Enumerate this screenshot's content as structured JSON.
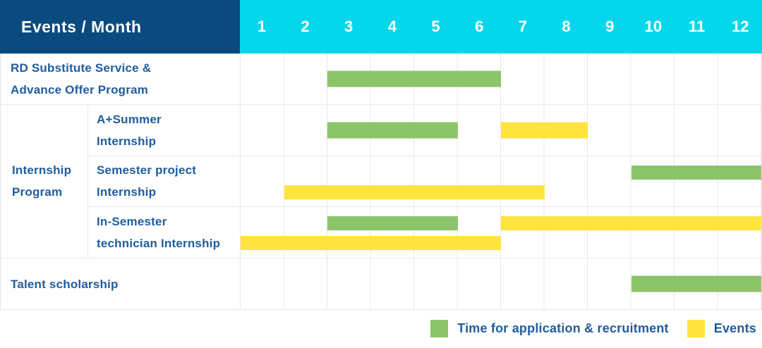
{
  "header": {
    "title": "Events / Month"
  },
  "colors": {
    "recruitment": "#8cc46a",
    "event": "#ffe440",
    "header_bg": "#0a4a7e",
    "month_header_bg": "#04d7ec",
    "label_text": "#1f5c9d",
    "header_text": "#ffffff",
    "grid_line": "#e8e8e8"
  },
  "chart_data": {
    "type": "bar",
    "variant": "gantt",
    "title": "Events / Month",
    "xlabel": "Month",
    "x_range": [
      1,
      12
    ],
    "month_ticks": [
      "1",
      "2",
      "3",
      "4",
      "5",
      "6",
      "7",
      "8",
      "9",
      "10",
      "11",
      "12"
    ],
    "grid": true,
    "legend_position": "bottom-right",
    "group": {
      "label": "Internship\nProgram",
      "name": "Internship Program",
      "member_rows": [
        1,
        2,
        3
      ]
    },
    "tasks": [
      {
        "label": "RD Substitute Service &\nAdvance Offer Program",
        "name": "RD Substitute Service & Advance Offer Program",
        "bars": [
          {
            "series": "recruitment",
            "start_month": 3,
            "end_month": 6,
            "slot": "center"
          }
        ]
      },
      {
        "label": "A+Summer\nInternship",
        "name": "A+Summer Internship",
        "group": "Internship Program",
        "bars": [
          {
            "series": "recruitment",
            "start_month": 3,
            "end_month": 5,
            "slot": "center"
          },
          {
            "series": "event",
            "start_month": 7,
            "end_month": 8,
            "slot": "center"
          }
        ]
      },
      {
        "label": "Semester project\nInternship",
        "name": "Semester project Internship",
        "group": "Internship Program",
        "bars": [
          {
            "series": "recruitment",
            "start_month": 10,
            "end_month": 12,
            "slot": "top"
          },
          {
            "series": "event",
            "start_month": 2,
            "end_month": 7,
            "slot": "bottom"
          }
        ]
      },
      {
        "label": "In-Semester\ntechnician Internship",
        "name": "In-Semester technician Internship",
        "group": "Internship Program",
        "bars": [
          {
            "series": "recruitment",
            "start_month": 3,
            "end_month": 5,
            "slot": "top"
          },
          {
            "series": "event",
            "start_month": 7,
            "end_month": 12,
            "slot": "top"
          },
          {
            "series": "event",
            "start_month": 1,
            "end_month": 6,
            "slot": "bottom"
          }
        ]
      },
      {
        "label": "Talent scholarship",
        "name": "Talent scholarship",
        "bars": [
          {
            "series": "recruitment",
            "start_month": 10,
            "end_month": 12,
            "slot": "center"
          }
        ]
      }
    ],
    "legend": [
      {
        "series": "recruitment",
        "label": "Time for application & recruitment"
      },
      {
        "series": "event",
        "label": "Events"
      }
    ]
  }
}
